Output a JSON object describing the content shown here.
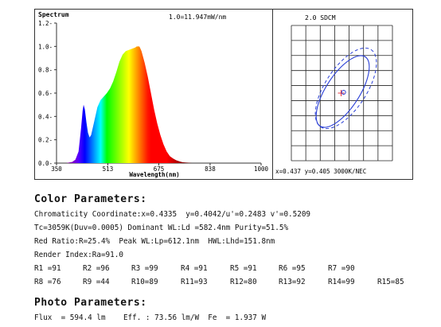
{
  "chart_data": [
    {
      "type": "area",
      "title": "Spectrum",
      "annotation": "1.0=11.947mW/nm",
      "xlabel": "Wavelength(nm)",
      "ylabel": "",
      "xlim": [
        350,
        1000
      ],
      "ylim": [
        0,
        1.2
      ],
      "x_ticks": [
        "350",
        "513",
        "675",
        "838",
        "1000"
      ],
      "y_ticks": [
        "0.0",
        "0.2",
        "0.4",
        "0.6",
        "0.8",
        "1.0",
        "1.2"
      ],
      "x": [
        380,
        400,
        410,
        420,
        428,
        433,
        436,
        440,
        445,
        450,
        455,
        460,
        465,
        470,
        480,
        490,
        500,
        510,
        520,
        530,
        540,
        550,
        560,
        570,
        580,
        590,
        600,
        605,
        610,
        613,
        615,
        620,
        630,
        640,
        650,
        660,
        670,
        680,
        690,
        700,
        710,
        720,
        730,
        740,
        750,
        760,
        770,
        780
      ],
      "values": [
        0.0,
        0.01,
        0.03,
        0.1,
        0.3,
        0.45,
        0.5,
        0.46,
        0.35,
        0.26,
        0.22,
        0.24,
        0.3,
        0.36,
        0.48,
        0.54,
        0.57,
        0.6,
        0.64,
        0.7,
        0.78,
        0.87,
        0.93,
        0.96,
        0.97,
        0.98,
        0.99,
        1.0,
        1.0,
        1.0,
        0.99,
        0.96,
        0.86,
        0.74,
        0.6,
        0.46,
        0.34,
        0.24,
        0.16,
        0.1,
        0.06,
        0.04,
        0.025,
        0.015,
        0.008,
        0.005,
        0.003,
        0.0
      ]
    },
    {
      "type": "scatter",
      "title": "2.0 SDCM",
      "readout": "x=0.437 y=0.405 3000K/NEC",
      "grid": true,
      "xlim": [
        0.405,
        0.47
      ],
      "ylim": [
        0.37,
        0.44
      ],
      "points": [
        {
          "name": "target",
          "marker": "cross",
          "x": 0.437,
          "y": 0.405
        },
        {
          "name": "measured",
          "marker": "circle",
          "x": 0.4335,
          "y": 0.4042
        }
      ]
    }
  ],
  "colors": {
    "cross": "#e8303a",
    "ellipse": "#2a3fd6",
    "axis": "#333333"
  },
  "report": {
    "color_title": "Color Parameters:",
    "chromaticity": "Chromaticity Coordinate:x=0.4335  y=0.4042/u'=0.2483 v'=0.5209",
    "tc": "Tc=3059K(Duv=0.0005) Dominant WL:Ld =582.4nm Purity=51.5%",
    "red": "Red Ratio:R=25.4%  Peak WL:Lp=612.1nm  HWL:Lhd=151.8nm",
    "render": "Render Index:Ra=91.0",
    "r_values": [
      "R1 =91",
      "R2 =96",
      "R3 =99",
      "R4 =91",
      "R5 =91",
      "R6 =95",
      "R7 =90",
      "R8 =76",
      "R9 =44",
      "R10=89",
      "R11=93",
      "R12=80",
      "R13=92",
      "R14=99",
      "R15=85"
    ],
    "photo_title": "Photo Parameters:",
    "flux": "Flux  = 594.4 lm    Eff. : 73.56 lm/W  Fe  = 1.937 W"
  }
}
